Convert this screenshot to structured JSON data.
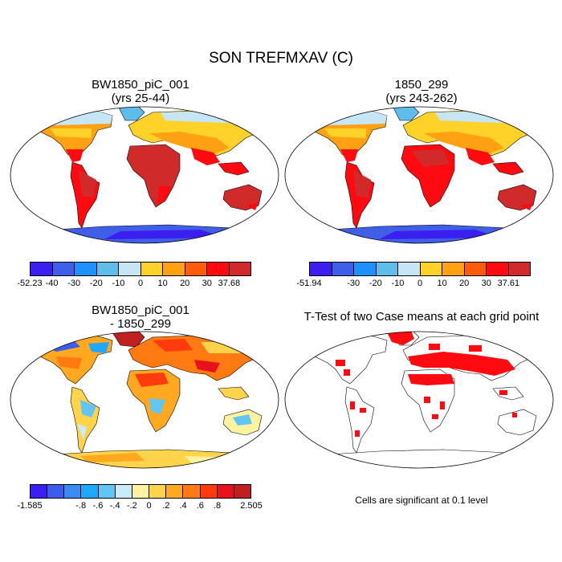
{
  "figure": {
    "title": "SON TREFMXAV (C)"
  },
  "panels": [
    {
      "title_line1": "BW1850_piC_001",
      "title_line2": "(yrs 25-44)"
    },
    {
      "title_line1": "1850_299",
      "title_line2": "(yrs 243-262)"
    },
    {
      "title_line1": "BW1850_piC_001",
      "title_line2": "- 1850_299"
    },
    {
      "title_line1": "T-Test of two Case means at each grid point"
    }
  ],
  "colorbars": [
    {
      "labels": [
        "-52.23",
        "-40",
        "-30",
        "-20",
        "-10",
        "0",
        "10",
        "20",
        "30",
        "37.68"
      ],
      "colors": [
        "#3a1ff0",
        "#3f5fe8",
        "#1e90ff",
        "#5fbdeb",
        "#c6e6f5",
        "#ffd22a",
        "#ffa112",
        "#ff5b08",
        "#ff0a10",
        "#d02a2a"
      ]
    },
    {
      "labels": [
        "-51.94",
        "-30",
        "-20",
        "-10",
        "0",
        "10",
        "20",
        "30",
        "37.61"
      ],
      "colors": [
        "#3a1ff0",
        "#3f5fe8",
        "#1e90ff",
        "#5fbdeb",
        "#c6e6f5",
        "#ffd22a",
        "#ffa112",
        "#ff5b08",
        "#ff0a10",
        "#d02a2a"
      ]
    },
    {
      "labels": [
        "-1.585",
        "-.8",
        "-.6",
        "-.4",
        "-.2",
        "0",
        ".2",
        ".4",
        ".6",
        ".8",
        "2.505"
      ],
      "colors": [
        "#3a1ff0",
        "#3a5df0",
        "#3a8df0",
        "#1ea8ff",
        "#62c6f5",
        "#c8ecf8",
        "#fff3a0",
        "#ffd34a",
        "#ffa820",
        "#ff7a10",
        "#ff3a0c",
        "#e8101a",
        "#c02020"
      ]
    }
  ],
  "note": {
    "text": "Cells are significant at 0.1 level"
  }
}
